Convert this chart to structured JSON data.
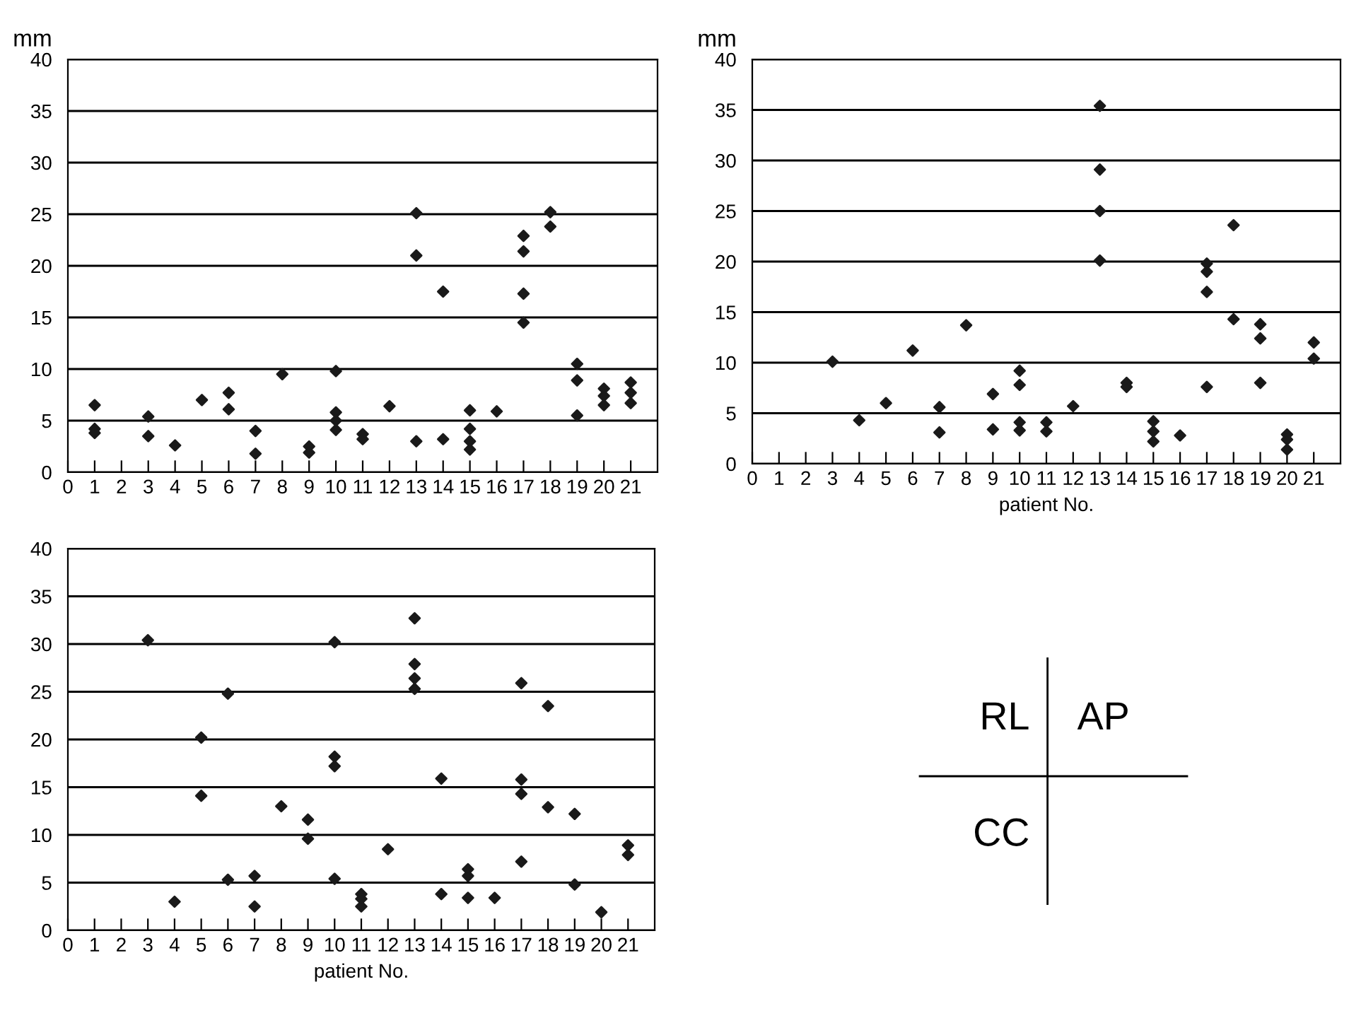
{
  "chart_data": [
    {
      "type": "scatter",
      "ylabel": "mm",
      "xlim": [
        0,
        22
      ],
      "ylim": [
        0,
        40
      ],
      "xticks": [
        0,
        1,
        2,
        3,
        4,
        5,
        6,
        7,
        8,
        9,
        10,
        11,
        12,
        13,
        14,
        15,
        16,
        17,
        18,
        19,
        20,
        21
      ],
      "yticks": [
        0,
        5,
        10,
        15,
        20,
        25,
        30,
        35,
        40
      ],
      "grid": "y",
      "marker": "diamond",
      "series": [
        {
          "color": "#1a1a1a",
          "x": [
            1,
            1,
            1,
            3,
            3,
            4,
            5,
            6,
            6,
            7,
            7,
            8,
            9,
            9,
            10,
            10,
            10,
            10,
            11,
            11,
            12,
            13,
            13,
            13,
            14,
            14,
            15,
            15,
            15,
            15,
            16,
            17,
            17,
            17,
            17,
            18,
            18,
            19,
            19,
            19,
            20,
            20,
            20,
            21,
            21,
            21
          ],
          "values": [
            6.5,
            4.2,
            3.8,
            5.4,
            3.5,
            2.6,
            7.0,
            7.7,
            6.1,
            4.0,
            1.8,
            9.5,
            2.5,
            1.9,
            9.8,
            5.8,
            5.0,
            4.1,
            3.7,
            3.2,
            6.4,
            25.1,
            21.0,
            3.0,
            17.5,
            3.2,
            6.0,
            4.2,
            3.0,
            2.2,
            5.9,
            22.9,
            21.4,
            17.3,
            14.5,
            25.2,
            23.8,
            10.5,
            8.9,
            5.5,
            8.1,
            7.4,
            6.5,
            8.7,
            7.7,
            6.7
          ]
        }
      ]
    },
    {
      "type": "scatter",
      "ylabel": "mm",
      "xlabel": "patient No.",
      "xlim": [
        0,
        22
      ],
      "ylim": [
        0,
        40
      ],
      "xticks": [
        0,
        1,
        2,
        3,
        4,
        5,
        6,
        7,
        8,
        9,
        10,
        11,
        12,
        13,
        14,
        15,
        16,
        17,
        18,
        19,
        20,
        21
      ],
      "yticks": [
        0,
        5,
        10,
        15,
        20,
        25,
        30,
        35,
        40
      ],
      "grid": "y",
      "marker": "diamond",
      "series": [
        {
          "color": "#1a1a1a",
          "x": [
            3,
            4,
            5,
            6,
            7,
            7,
            8,
            9,
            9,
            10,
            10,
            10,
            10,
            11,
            11,
            12,
            13,
            13,
            13,
            13,
            14,
            14,
            15,
            15,
            15,
            16,
            17,
            17,
            17,
            17,
            18,
            18,
            19,
            19,
            19,
            20,
            20,
            20,
            21,
            21
          ],
          "values": [
            10.1,
            4.3,
            6.0,
            11.2,
            5.6,
            3.1,
            13.7,
            6.9,
            3.4,
            9.2,
            7.8,
            4.1,
            3.3,
            4.1,
            3.2,
            5.7,
            35.4,
            29.1,
            25.0,
            20.1,
            8.0,
            7.6,
            4.2,
            3.2,
            2.2,
            2.8,
            19.8,
            19.0,
            17.0,
            7.6,
            23.6,
            14.3,
            13.8,
            12.4,
            8.0,
            2.9,
            2.4,
            1.4,
            12.0,
            10.4
          ]
        }
      ]
    },
    {
      "type": "scatter",
      "xlabel": "patient No.",
      "xlim": [
        0,
        22
      ],
      "ylim": [
        0,
        40
      ],
      "xticks": [
        0,
        1,
        2,
        3,
        4,
        5,
        6,
        7,
        8,
        9,
        10,
        11,
        12,
        13,
        14,
        15,
        16,
        17,
        18,
        19,
        20,
        21
      ],
      "yticks": [
        0,
        5,
        10,
        15,
        20,
        25,
        30,
        35,
        40
      ],
      "grid": "y",
      "marker": "diamond",
      "series": [
        {
          "color": "#1a1a1a",
          "x": [
            3,
            4,
            5,
            5,
            6,
            6,
            7,
            7,
            8,
            9,
            9,
            10,
            10,
            10,
            10,
            11,
            11,
            11,
            12,
            13,
            13,
            13,
            13,
            14,
            14,
            15,
            15,
            15,
            16,
            17,
            17,
            17,
            17,
            18,
            18,
            19,
            19,
            20,
            21,
            21
          ],
          "values": [
            30.4,
            3.0,
            20.2,
            14.1,
            24.8,
            5.3,
            5.7,
            2.5,
            13.0,
            11.6,
            9.6,
            30.2,
            18.2,
            17.2,
            5.4,
            3.8,
            3.3,
            2.5,
            8.5,
            32.7,
            27.9,
            26.4,
            25.3,
            15.9,
            3.8,
            6.4,
            5.7,
            3.4,
            3.4,
            25.9,
            15.8,
            14.3,
            7.2,
            23.5,
            12.9,
            12.2,
            4.8,
            1.9,
            8.9,
            7.9
          ]
        }
      ]
    },
    {
      "type": "other",
      "annotations": [
        "RL",
        "AP",
        "CC"
      ]
    }
  ]
}
